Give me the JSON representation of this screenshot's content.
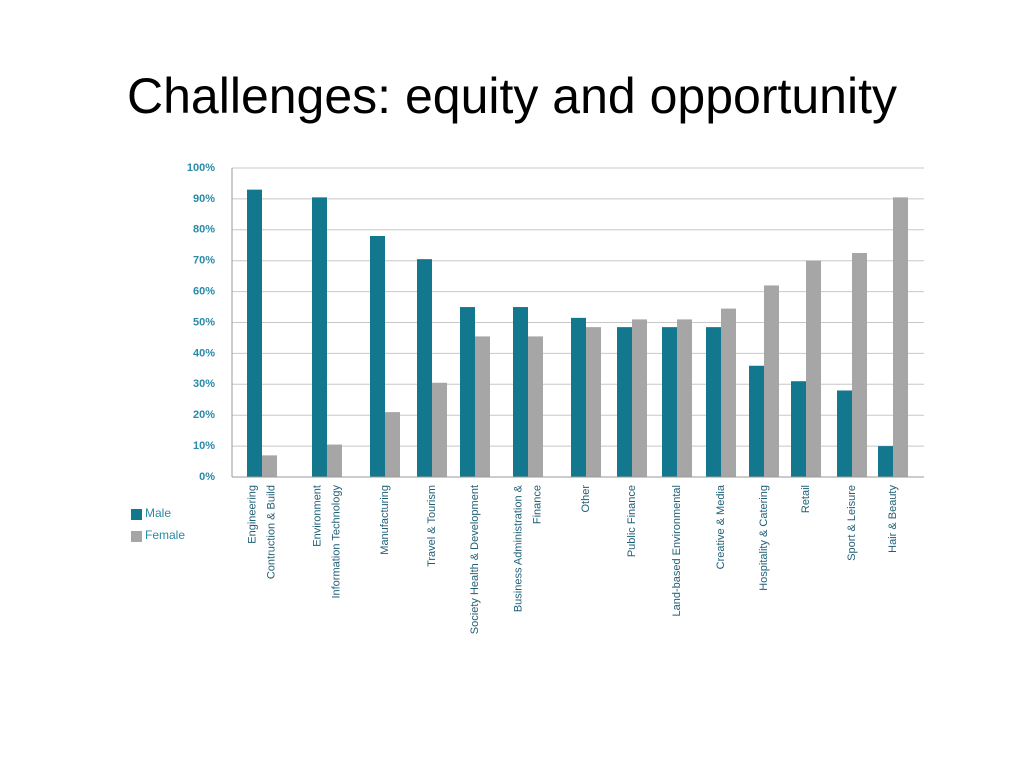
{
  "chart_data": {
    "type": "bar",
    "title": "Challenges: equity and opportunity",
    "categories": [
      [
        "Engineering",
        "Contruction & Build"
      ],
      [
        "Environment",
        "Information Technology"
      ],
      [
        "Manufacturing"
      ],
      [
        "Travel & Tourism"
      ],
      [
        "Society Health & Development"
      ],
      [
        "Business Administration &",
        "Finance"
      ],
      [
        "Other"
      ],
      [
        "Public Finance"
      ],
      [
        "Land-based Environmental"
      ],
      [
        "Creative & Media"
      ],
      [
        "Hospitality & Catering"
      ],
      [
        "Retail"
      ],
      [
        "Sport & Leisure"
      ],
      [
        "Hair & Beauty"
      ]
    ],
    "series": [
      {
        "name": "Male",
        "color": "#13788e",
        "values": [
          93,
          90.5,
          78,
          70.5,
          55,
          55,
          51.5,
          48.5,
          48.5,
          48.5,
          36,
          31,
          28,
          10
        ]
      },
      {
        "name": "Female",
        "color": "#a6a6a6",
        "values": [
          7,
          10.5,
          21,
          30.5,
          45.5,
          45.5,
          48.5,
          51,
          51,
          54.5,
          62,
          70,
          72.5,
          90.5
        ]
      }
    ],
    "ylim": [
      0,
      100
    ],
    "yticks": [
      {
        "value": 0,
        "label": "0%"
      },
      {
        "value": 10,
        "label": "10%"
      },
      {
        "value": 20,
        "label": "20%"
      },
      {
        "value": 30,
        "label": "30%"
      },
      {
        "value": 40,
        "label": "40%"
      },
      {
        "value": 50,
        "label": "50%"
      },
      {
        "value": 60,
        "label": "60%"
      },
      {
        "value": 70,
        "label": "70%"
      },
      {
        "value": 80,
        "label": "80%"
      },
      {
        "value": 90,
        "label": "90%"
      },
      {
        "value": 100,
        "label": "100%"
      }
    ],
    "grid": true,
    "legend": "left"
  }
}
